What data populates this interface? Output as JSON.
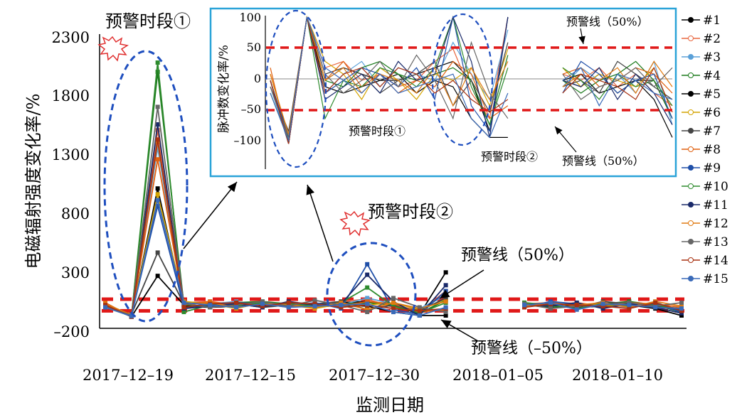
{
  "chart_data": {
    "type": "line",
    "ylabel": "电磁辐射强度变化率/%",
    "xlabel": "监测日期",
    "x_tick_labels": [
      "2017–12–19",
      "2017–12–15",
      "2017–12–30",
      "2018–01–05",
      "2018–01–10"
    ],
    "y_tick_labels": [
      "2300",
      "1800",
      "1300",
      "800",
      "300",
      "–200"
    ],
    "ylim": [
      -200,
      2300
    ],
    "grid": false,
    "legend": {
      "placement": "right",
      "entries": [
        "#1",
        "#2",
        "#3",
        "#4",
        "#5",
        "#6",
        "#7",
        "#8",
        "#9",
        "#10",
        "#11",
        "#12",
        "#13",
        "#14",
        "#15"
      ]
    },
    "warning_lines": {
      "upper": 50,
      "lower": -50,
      "upper_label": "预警线（50%）",
      "lower_label": "预警线（–50%）"
    },
    "annotations": {
      "period1": "预警时段①",
      "period2": "预警时段②"
    },
    "series": [
      {
        "name": "#1",
        "color": "#000000",
        "values": [
          0,
          -100,
          250,
          0,
          20,
          10,
          0,
          0,
          10,
          20,
          30,
          0,
          -80,
          280,
          null,
          null,
          0,
          -10,
          10,
          -20,
          0,
          0,
          -60
        ]
      },
      {
        "name": "#2",
        "color": "#e8663f",
        "values": [
          10,
          -90,
          1500,
          20,
          30,
          0,
          10,
          -10,
          0,
          30,
          50,
          -20,
          -60,
          120,
          null,
          null,
          10,
          0,
          20,
          -10,
          10,
          -20,
          -40
        ]
      },
      {
        "name": "#3",
        "color": "#5aa0d8",
        "values": [
          -10,
          -100,
          1350,
          -20,
          10,
          30,
          -10,
          20,
          10,
          0,
          60,
          10,
          -30,
          80,
          null,
          null,
          -10,
          20,
          0,
          10,
          -20,
          30,
          -70
        ]
      },
      {
        "name": "#4",
        "color": "#1a7a1a",
        "values": [
          0,
          -95,
          2000,
          0,
          -10,
          20,
          30,
          10,
          0,
          10,
          20,
          0,
          -70,
          40,
          null,
          null,
          0,
          -20,
          0,
          10,
          30,
          0,
          -60
        ]
      },
      {
        "name": "#5",
        "color": "#000000",
        "values": [
          0,
          -100,
          1000,
          -10,
          -20,
          -10,
          0,
          10,
          -20,
          0,
          -10,
          -60,
          -90,
          -90,
          null,
          null,
          0,
          10,
          -20,
          -10,
          0,
          -30,
          -90
        ]
      },
      {
        "name": "#6",
        "color": "#d4a300",
        "values": [
          10,
          -90,
          950,
          30,
          10,
          -30,
          20,
          0,
          -30,
          10,
          0,
          20,
          -40,
          50,
          null,
          null,
          20,
          -10,
          10,
          0,
          -10,
          20,
          -50
        ]
      },
      {
        "name": "#7",
        "color": "#444444",
        "values": [
          -10,
          -80,
          450,
          10,
          20,
          10,
          -20,
          0,
          10,
          30,
          -40,
          0,
          -50,
          60,
          null,
          null,
          -10,
          0,
          -20,
          30,
          10,
          -10,
          -30
        ]
      },
      {
        "name": "#8",
        "color": "#e06010",
        "values": [
          20,
          -100,
          1250,
          0,
          30,
          -10,
          10,
          -20,
          0,
          -10,
          30,
          10,
          -60,
          -40,
          null,
          null,
          10,
          20,
          -10,
          0,
          20,
          10,
          -20
        ]
      },
      {
        "name": "#9",
        "color": "#1f4fa8",
        "values": [
          0,
          -90,
          850,
          -20,
          0,
          20,
          10,
          -10,
          20,
          -30,
          350,
          -40,
          -80,
          120,
          null,
          null,
          -20,
          30,
          10,
          -20,
          0,
          10,
          -60
        ]
      },
      {
        "name": "#10",
        "color": "#2e8b2e",
        "values": [
          -20,
          -95,
          2080,
          -60,
          0,
          -10,
          20,
          10,
          -10,
          20,
          150,
          -10,
          -70,
          20,
          null,
          null,
          20,
          0,
          -30,
          10,
          -10,
          0,
          -40
        ]
      },
      {
        "name": "#11",
        "color": "#1a2a6a",
        "values": [
          0,
          -100,
          1550,
          -30,
          -10,
          10,
          -20,
          30,
          0,
          10,
          260,
          30,
          -90,
          170,
          null,
          null,
          0,
          -10,
          20,
          -30,
          10,
          -20,
          -70
        ]
      },
      {
        "name": "#12",
        "color": "#e07a10",
        "values": [
          10,
          -85,
          1400,
          0,
          20,
          -20,
          10,
          0,
          -20,
          20,
          -40,
          20,
          -30,
          30,
          null,
          null,
          -10,
          10,
          0,
          20,
          -20,
          30,
          -10
        ]
      },
      {
        "name": "#13",
        "color": "#666666",
        "values": [
          -10,
          -90,
          1700,
          10,
          -20,
          0,
          30,
          -10,
          40,
          0,
          -60,
          60,
          -20,
          -60,
          null,
          null,
          10,
          -30,
          -10,
          0,
          20,
          -10,
          20
        ]
      },
      {
        "name": "#14",
        "color": "#a83010",
        "values": [
          0,
          -100,
          1420,
          -20,
          10,
          20,
          -10,
          20,
          10,
          -20,
          0,
          -30,
          -50,
          -30,
          null,
          null,
          -20,
          10,
          0,
          -10,
          -30,
          20,
          -50
        ]
      },
      {
        "name": "#15",
        "color": "#3a6ab8",
        "values": [
          -20,
          -95,
          900,
          20,
          0,
          -20,
          10,
          -20,
          -10,
          0,
          10,
          -60,
          -90,
          -20,
          null,
          null,
          0,
          20,
          -40,
          10,
          0,
          -20,
          -30
        ]
      }
    ],
    "inset": {
      "ylabel": "脉冲数变化率/%",
      "y_tick_labels": [
        "100",
        "50",
        "0",
        "–50",
        "–100"
      ],
      "ylim": [
        -140,
        100
      ],
      "upper_label": "预警线（50%）",
      "lower_label": "预警线（50%）",
      "period1": "预警时段①",
      "period2": "预警时段②"
    }
  }
}
